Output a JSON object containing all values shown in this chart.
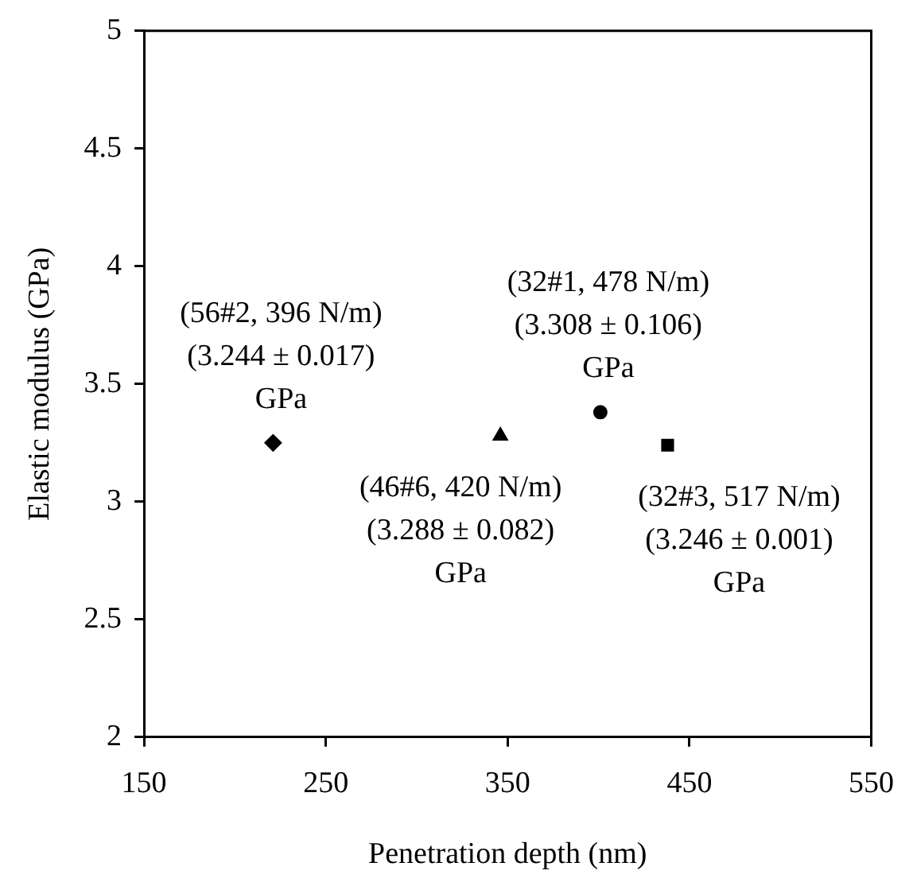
{
  "chart_data": {
    "type": "scatter",
    "xlabel": "Penetration depth (nm)",
    "ylabel": "Elastic modulus (GPa)",
    "xlim": [
      150,
      550
    ],
    "xticks": [
      150,
      250,
      350,
      450,
      550
    ],
    "ylim": [
      2,
      5
    ],
    "yticks": [
      2,
      2.5,
      3,
      3.5,
      4,
      4.5,
      5
    ],
    "grid": false,
    "series": [
      {
        "color": "#000000",
        "marker": "diamond",
        "x": [
          221
        ],
        "values": [
          3.25
        ]
      },
      {
        "color": "#000000",
        "marker": "triangle",
        "x": [
          346
        ],
        "values": [
          3.28
        ]
      },
      {
        "color": "#000000",
        "marker": "circle",
        "x": [
          401
        ],
        "values": [
          3.38
        ]
      },
      {
        "color": "#000000",
        "marker": "square",
        "x": [
          438
        ],
        "values": [
          3.24
        ]
      }
    ],
    "annotations": [
      {
        "text": "(56#2, 396 N/m)\n(3.244 ± 0.017)\nGPa",
        "x": 221,
        "y": 3.25
      },
      {
        "text": "(46#6, 420 N/m)\n(3.288 ± 0.082)\nGPa",
        "x": 346,
        "y": 3.28
      },
      {
        "text": "(32#1, 478 N/m)\n(3.308 ± 0.106)\nGPa",
        "x": 401,
        "y": 3.38
      },
      {
        "text": "(32#3, 517 N/m)\n(3.246 ± 0.001)\nGPa",
        "x": 438,
        "y": 3.24
      }
    ]
  }
}
